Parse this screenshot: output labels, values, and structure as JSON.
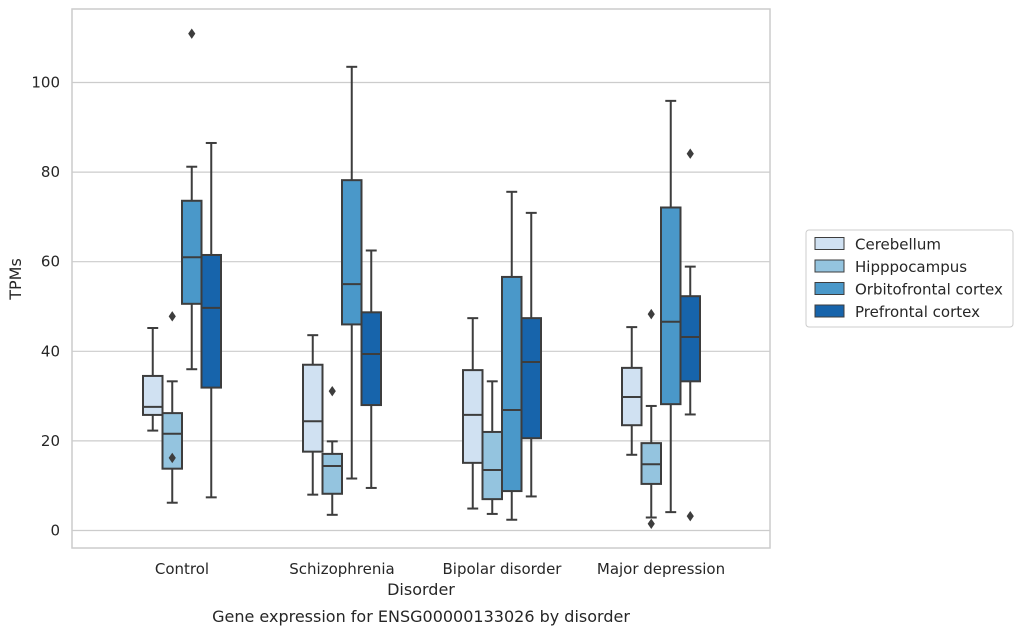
{
  "chart_data": {
    "type": "box",
    "title": "",
    "caption": "Gene expression for ENSG00000133026 by disorder",
    "xlabel": "Disorder",
    "ylabel": "TPMs",
    "ylim": [
      -4,
      117
    ],
    "yticks": [
      0,
      20,
      40,
      60,
      80,
      100
    ],
    "grid": "horizontal",
    "legend_position": "right",
    "categories": [
      "Control",
      "Schizophrenia",
      "Bipolar disorder",
      "Major depression"
    ],
    "colors": {
      "Cerebellum": "#d0e1f2",
      "Hipppocampus": "#94c4df",
      "Orbitofrontal cortex": "#4a98c9",
      "Prefrontal cortex": "#1764ab",
      "line": "#3d3d3d"
    },
    "series": [
      {
        "name": "Cerebellum",
        "boxes": [
          {
            "whislo": 22.3,
            "q1": 25.8,
            "med": 27.6,
            "q3": 34.5,
            "whishi": 45.2,
            "fliers": []
          },
          {
            "whislo": 8.0,
            "q1": 17.6,
            "med": 24.4,
            "q3": 37.0,
            "whishi": 43.6,
            "fliers": []
          },
          {
            "whislo": 4.9,
            "q1": 15.1,
            "med": 25.8,
            "q3": 35.8,
            "whishi": 47.4,
            "fliers": []
          },
          {
            "whislo": 16.9,
            "q1": 23.5,
            "med": 29.8,
            "q3": 36.3,
            "whishi": 45.4,
            "fliers": []
          }
        ]
      },
      {
        "name": "Hipppocampus",
        "boxes": [
          {
            "whislo": 6.2,
            "q1": 13.8,
            "med": 21.6,
            "q3": 26.2,
            "whishi": 33.3,
            "fliers": [
              47.8,
              16.2
            ]
          },
          {
            "whislo": 3.5,
            "q1": 8.2,
            "med": 14.4,
            "q3": 17.1,
            "whishi": 19.9,
            "fliers": [
              31.1
            ]
          },
          {
            "whislo": 3.7,
            "q1": 7.0,
            "med": 13.5,
            "q3": 22.0,
            "whishi": 33.3,
            "fliers": []
          },
          {
            "whislo": 2.9,
            "q1": 10.4,
            "med": 14.8,
            "q3": 19.5,
            "whishi": 27.8,
            "fliers": [
              48.3,
              1.5
            ]
          }
        ]
      },
      {
        "name": "Orbitofrontal cortex",
        "boxes": [
          {
            "whislo": 36.0,
            "q1": 50.6,
            "med": 61.0,
            "q3": 73.6,
            "whishi": 81.2,
            "fliers": [
              110.9
            ]
          },
          {
            "whislo": 11.6,
            "q1": 46.0,
            "med": 55.0,
            "q3": 78.2,
            "whishi": 103.5,
            "fliers": []
          },
          {
            "whislo": 2.4,
            "q1": 8.8,
            "med": 26.9,
            "q3": 56.6,
            "whishi": 75.6,
            "fliers": []
          },
          {
            "whislo": 4.1,
            "q1": 28.2,
            "med": 46.6,
            "q3": 72.1,
            "whishi": 95.9,
            "fliers": []
          }
        ]
      },
      {
        "name": "Prefrontal cortex",
        "boxes": [
          {
            "whislo": 7.4,
            "q1": 31.9,
            "med": 49.7,
            "q3": 61.5,
            "whishi": 86.5,
            "fliers": []
          },
          {
            "whislo": 9.5,
            "q1": 28.0,
            "med": 39.4,
            "q3": 48.7,
            "whishi": 62.5,
            "fliers": []
          },
          {
            "whislo": 7.6,
            "q1": 20.6,
            "med": 37.6,
            "q3": 47.4,
            "whishi": 70.9,
            "fliers": []
          },
          {
            "whislo": 25.9,
            "q1": 33.3,
            "med": 43.2,
            "q3": 52.3,
            "whishi": 58.9,
            "fliers": [
              84.1,
              3.2
            ]
          }
        ]
      }
    ]
  }
}
